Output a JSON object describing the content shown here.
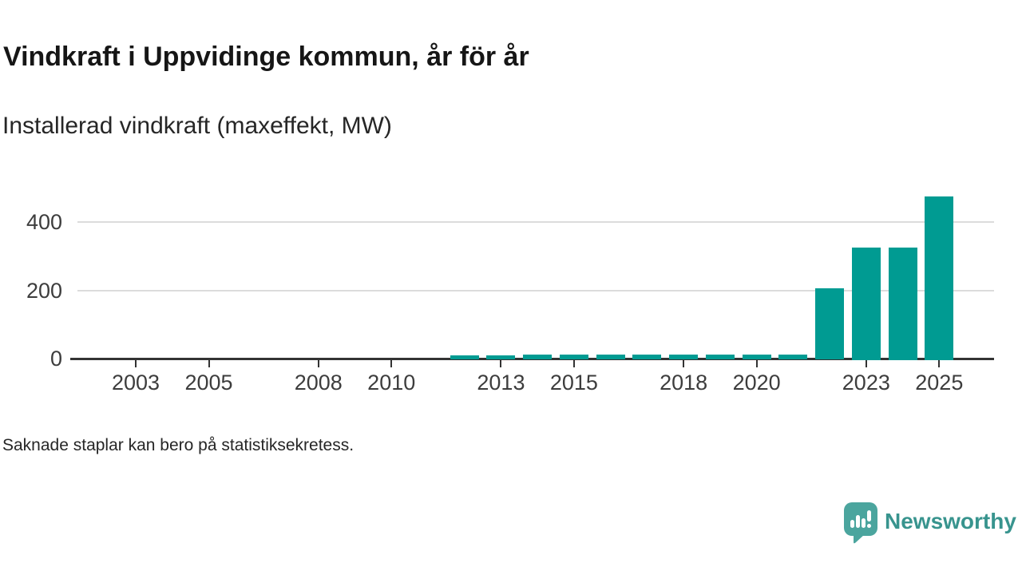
{
  "chart_data": {
    "type": "bar",
    "title": "Vindkraft i Uppvidinge kommun, år för år",
    "subtitle": "Installerad vindkraft (maxeffekt, MW)",
    "note": "Saknade staplar kan bero på statistiksekretess.",
    "unit": "MW",
    "categories": [
      2002,
      2003,
      2004,
      2005,
      2006,
      2007,
      2008,
      2009,
      2010,
      2011,
      2012,
      2013,
      2014,
      2015,
      2016,
      2017,
      2018,
      2019,
      2020,
      2021,
      2022,
      2023,
      2024,
      2025
    ],
    "values": [
      null,
      null,
      null,
      null,
      null,
      null,
      null,
      null,
      null,
      null,
      9,
      10,
      12,
      12,
      12,
      12,
      12,
      12,
      12,
      12,
      205,
      325,
      325,
      475
    ],
    "yticks": [
      0,
      200,
      400
    ],
    "ylim": [
      0,
      500
    ],
    "xtick_labels": [
      "2003",
      "2005",
      "2008",
      "2010",
      "2013",
      "2015",
      "2018",
      "2020",
      "2023",
      "2025"
    ],
    "grid": "horizontal",
    "legend": "none",
    "bar_color": "#009b92",
    "axis_color": "#333333",
    "grid_color": "#dcdcdc"
  },
  "branding": {
    "name": "Newsworthy",
    "logo_icon": "speech-bubble-bar-chart-icon",
    "icon_bg": "#4ba59e",
    "icon_glyph_color": "#ffffff",
    "text_color": "#38948e"
  }
}
